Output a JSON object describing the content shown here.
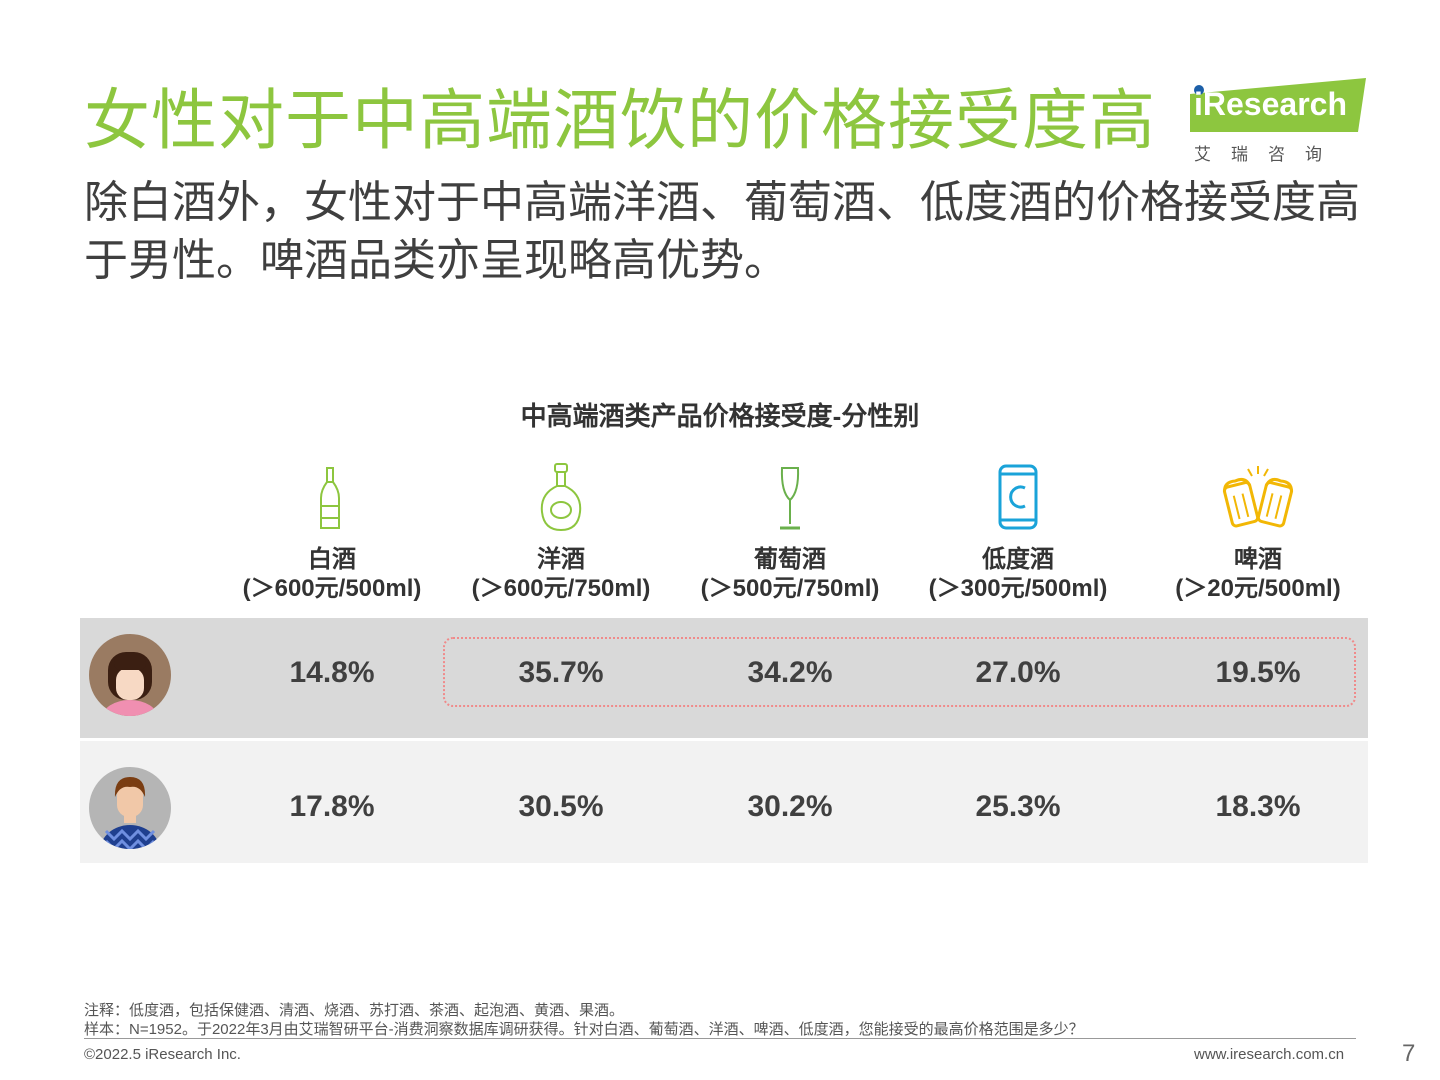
{
  "header": {
    "title": "女性对于中高端酒饮的价格接受度高",
    "subtitle": "除白酒外，女性对于中高端洋酒、葡萄酒、低度酒的价格接受度高于男性。啤酒品类亦呈现略高优势。"
  },
  "logo": {
    "text": "iResearch",
    "cn": "艾瑞咨询",
    "color": "#8dc63f"
  },
  "chart_data": {
    "type": "table",
    "title": "中高端酒类产品价格接受度-分性别",
    "categories": [
      {
        "name": "白酒",
        "range": "(＞600元/500ml)",
        "icon": "baijiu-bottle-icon"
      },
      {
        "name": "洋酒",
        "range": "(＞600元/750ml)",
        "icon": "liquor-bottle-icon"
      },
      {
        "name": "葡萄酒",
        "range": "(＞500元/750ml)",
        "icon": "wine-glass-icon"
      },
      {
        "name": "低度酒",
        "range": "(＞300元/500ml)",
        "icon": "can-icon"
      },
      {
        "name": "啤酒",
        "range": "(＞20元/500ml)",
        "icon": "beer-mugs-icon"
      }
    ],
    "series": [
      {
        "icon": "female-avatar-icon",
        "values": [
          14.8,
          35.7,
          34.2,
          27.0,
          19.5
        ],
        "labels": [
          "14.8%",
          "35.7%",
          "34.2%",
          "27.0%",
          "19.5%"
        ]
      },
      {
        "icon": "male-avatar-icon",
        "values": [
          17.8,
          30.5,
          30.2,
          25.3,
          18.3
        ],
        "labels": [
          "17.8%",
          "30.5%",
          "30.2%",
          "25.3%",
          "18.3%"
        ]
      }
    ],
    "highlight": {
      "row": 0,
      "from": 1,
      "to": 4,
      "color": "#f08a8a"
    },
    "icon_colors": [
      "#8dc63f",
      "#8dc63f",
      "#6ab04c",
      "#1aa3d9",
      "#f2b705"
    ]
  },
  "footer": {
    "note1": "注释：低度酒，包括保健酒、清酒、烧酒、苏打酒、茶酒、起泡酒、黄酒、果酒。",
    "note2": "样本：N=1952。于2022年3月由艾瑞智研平台-消费洞察数据库调研获得。针对白酒、葡萄酒、洋酒、啤酒、低度酒，您能接受的最高价格范围是多少？",
    "copyright": "©2022.5 iResearch Inc.",
    "url": "www.iresearch.com.cn",
    "page": "7"
  }
}
